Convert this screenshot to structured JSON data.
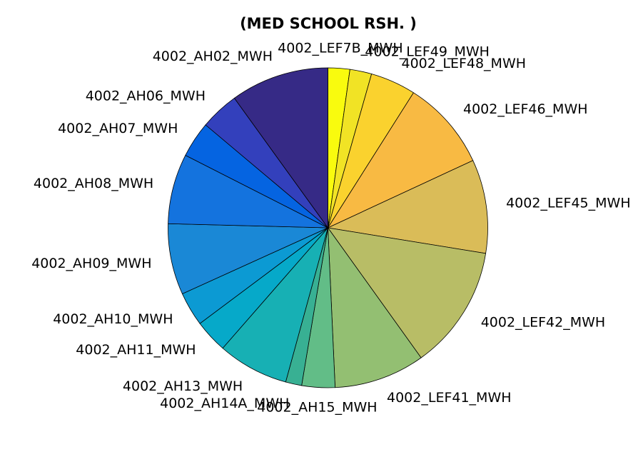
{
  "chart_data": {
    "type": "pie",
    "title": "(MED SCHOOL RSH. )",
    "start": "top",
    "direction": "clockwise",
    "slices": [
      {
        "label": "4002_LEF7B_MWH",
        "value": 2.3,
        "color": "#f9fb0e"
      },
      {
        "label": "4002_LEF49_MWH",
        "value": 2.3,
        "color": "#f1e325"
      },
      {
        "label": "4002_LEF48_MWH",
        "value": 4.8,
        "color": "#fad22e"
      },
      {
        "label": "4002_LEF46_MWH",
        "value": 9.5,
        "color": "#f8ba43"
      },
      {
        "label": "4002_LEF45_MWH",
        "value": 9.9,
        "color": "#dabc58"
      },
      {
        "label": "4002_LEF42_MWH",
        "value": 13.1,
        "color": "#b8bd66"
      },
      {
        "label": "4002_LEF41_MWH",
        "value": 9.6,
        "color": "#93bf72"
      },
      {
        "label": "4002_AH15_MWH",
        "value": 3.5,
        "color": "#62bd87"
      },
      {
        "label": "4002_AH14A_MWH",
        "value": 1.7,
        "color": "#38b093"
      },
      {
        "label": "4002_AH13_MWH",
        "value": 7.5,
        "color": "#17b0b4"
      },
      {
        "label": "4002_AH11_MWH",
        "value": 3.5,
        "color": "#06a9c9"
      },
      {
        "label": "4002_AH10_MWH",
        "value": 3.6,
        "color": "#0c9ad3"
      },
      {
        "label": "4002_AH09_MWH",
        "value": 7.5,
        "color": "#1a88d6"
      },
      {
        "label": "4002_AH08_MWH",
        "value": 7.4,
        "color": "#1473de"
      },
      {
        "label": "4002_AH07_MWH",
        "value": 3.8,
        "color": "#0564e1"
      },
      {
        "label": "4002_AH06_MWH",
        "value": 4.1,
        "color": "#3340bc"
      },
      {
        "label": "4002_AH02_MWH",
        "value": 10.4,
        "color": "#362a86"
      }
    ]
  }
}
